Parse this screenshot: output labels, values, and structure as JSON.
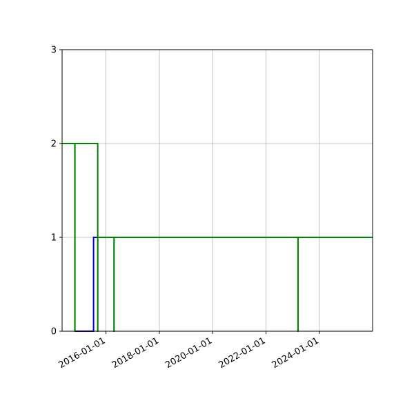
{
  "chart_data": {
    "type": "line",
    "title": "",
    "xlabel": "",
    "ylabel": "",
    "x_axis_type": "date",
    "xlim": [
      "2014-05-10",
      "2025-12-31"
    ],
    "ylim": [
      0,
      3
    ],
    "grid": true,
    "legend": "none",
    "x_ticks": [
      "2016-01-01",
      "2018-01-01",
      "2020-01-01",
      "2022-01-01",
      "2024-01-01"
    ],
    "y_ticks": [
      "0",
      "1",
      "2",
      "3"
    ],
    "series": [
      {
        "color": "#0000ff",
        "step": "post",
        "x": [
          "2014-05-10",
          "2014-11-01",
          "2015-07-15",
          "2015-09-10",
          "2016-04-20",
          "2025-12-31"
        ],
        "y": [
          2,
          0,
          1,
          1,
          1,
          1
        ]
      },
      {
        "color": "#008000",
        "step": "post",
        "x": [
          "2014-05-10",
          "2014-11-01",
          "2014-11-02",
          "2015-07-15",
          "2015-09-10",
          "2015-09-11",
          "2016-04-20",
          "2016-04-21",
          "2023-03-15",
          "2023-03-16",
          "2025-12-31"
        ],
        "y": [
          2,
          0,
          2,
          2,
          0,
          1,
          0,
          1,
          0,
          1,
          1
        ]
      }
    ]
  }
}
